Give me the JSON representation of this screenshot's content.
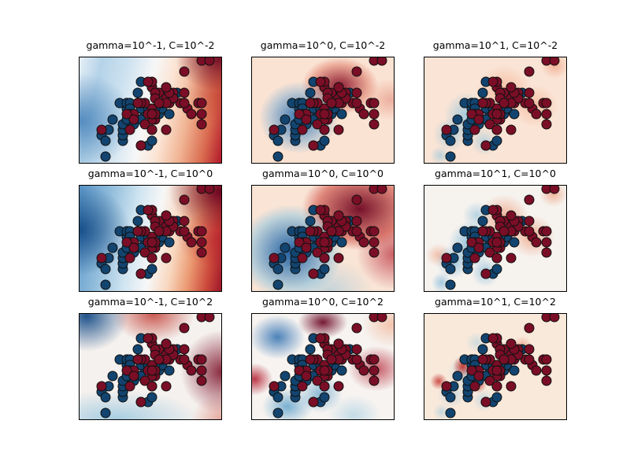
{
  "figure": {
    "background": "#ffffff",
    "grid": {
      "rows": 3,
      "cols": 3
    }
  },
  "chart_data": {
    "type": "scatter",
    "description": "3x3 grid of SVM (RBF kernel) decision surfaces over the same two-class standardized scatter data; columns vary gamma, rows vary C",
    "subplots": [
      {
        "title": "gamma=10^-1, C=10^-2",
        "gamma": "10^-1",
        "C": "10^-2"
      },
      {
        "title": "gamma=10^0, C=10^-2",
        "gamma": "10^0",
        "C": "10^-2"
      },
      {
        "title": "gamma=10^1, C=10^-2",
        "gamma": "10^1",
        "C": "10^-2"
      },
      {
        "title": "gamma=10^-1, C=10^0",
        "gamma": "10^-1",
        "C": "10^0"
      },
      {
        "title": "gamma=10^0, C=10^0",
        "gamma": "10^0",
        "C": "10^0"
      },
      {
        "title": "gamma=10^1, C=10^0",
        "gamma": "10^1",
        "C": "10^0"
      },
      {
        "title": "gamma=10^-1, C=10^2",
        "gamma": "10^-1",
        "C": "10^2"
      },
      {
        "title": "gamma=10^0, C=10^2",
        "gamma": "10^0",
        "C": "10^2"
      },
      {
        "title": "gamma=10^1, C=10^2",
        "gamma": "10^1",
        "C": "10^2"
      }
    ],
    "axes": {
      "x_range": [
        -3,
        3
      ],
      "y_range": [
        -3,
        3
      ],
      "ticks": "none",
      "note": "points are standardized (z-scored) before plotting"
    },
    "classes": [
      {
        "name": "class-0-blue",
        "color": "#12446f"
      },
      {
        "name": "class-1-red",
        "color": "#7a0e26"
      }
    ],
    "point_edge_color": "#101010",
    "colormap": {
      "name": "RdBu",
      "blue_end": "#053061",
      "mid": "#f7f7f7",
      "red_end": "#67001f"
    },
    "points": [
      [
        7.0,
        3.2,
        0
      ],
      [
        6.4,
        3.2,
        0
      ],
      [
        6.9,
        3.1,
        0
      ],
      [
        5.5,
        2.3,
        0
      ],
      [
        6.5,
        2.8,
        0
      ],
      [
        5.7,
        2.8,
        0
      ],
      [
        6.3,
        3.3,
        0
      ],
      [
        4.9,
        2.4,
        0
      ],
      [
        6.6,
        2.9,
        0
      ],
      [
        5.2,
        2.7,
        0
      ],
      [
        5.0,
        2.0,
        0
      ],
      [
        5.9,
        3.0,
        0
      ],
      [
        6.0,
        2.2,
        0
      ],
      [
        6.1,
        2.9,
        0
      ],
      [
        5.6,
        2.9,
        0
      ],
      [
        6.7,
        3.1,
        0
      ],
      [
        5.6,
        3.0,
        0
      ],
      [
        5.8,
        2.7,
        0
      ],
      [
        6.2,
        2.2,
        0
      ],
      [
        5.6,
        2.5,
        0
      ],
      [
        5.9,
        3.2,
        0
      ],
      [
        6.1,
        2.8,
        0
      ],
      [
        6.3,
        2.5,
        0
      ],
      [
        6.1,
        2.8,
        0
      ],
      [
        6.4,
        2.9,
        0
      ],
      [
        6.6,
        3.0,
        0
      ],
      [
        6.8,
        2.8,
        0
      ],
      [
        6.7,
        3.0,
        0
      ],
      [
        6.0,
        2.9,
        0
      ],
      [
        5.7,
        2.6,
        0
      ],
      [
        5.5,
        2.4,
        0
      ],
      [
        5.5,
        2.4,
        0
      ],
      [
        5.8,
        2.7,
        0
      ],
      [
        6.0,
        2.7,
        0
      ],
      [
        5.4,
        3.0,
        0
      ],
      [
        6.0,
        3.4,
        0
      ],
      [
        6.7,
        3.1,
        0
      ],
      [
        6.3,
        2.3,
        0
      ],
      [
        5.6,
        3.0,
        0
      ],
      [
        5.5,
        2.5,
        0
      ],
      [
        5.5,
        2.6,
        0
      ],
      [
        6.1,
        3.0,
        0
      ],
      [
        5.8,
        2.6,
        0
      ],
      [
        5.0,
        2.3,
        0
      ],
      [
        5.6,
        2.7,
        0
      ],
      [
        5.7,
        3.0,
        0
      ],
      [
        5.7,
        2.9,
        0
      ],
      [
        6.2,
        2.9,
        0
      ],
      [
        5.1,
        2.5,
        0
      ],
      [
        5.7,
        2.8,
        0
      ],
      [
        6.3,
        3.3,
        1
      ],
      [
        5.8,
        2.7,
        1
      ],
      [
        7.1,
        3.0,
        1
      ],
      [
        6.3,
        2.9,
        1
      ],
      [
        6.5,
        3.0,
        1
      ],
      [
        7.6,
        3.0,
        1
      ],
      [
        4.9,
        2.5,
        1
      ],
      [
        7.3,
        2.9,
        1
      ],
      [
        6.7,
        2.5,
        1
      ],
      [
        7.2,
        3.6,
        1
      ],
      [
        6.5,
        3.2,
        1
      ],
      [
        6.4,
        2.7,
        1
      ],
      [
        6.8,
        3.0,
        1
      ],
      [
        5.7,
        2.5,
        1
      ],
      [
        5.8,
        2.8,
        1
      ],
      [
        6.4,
        3.2,
        1
      ],
      [
        6.5,
        3.0,
        1
      ],
      [
        7.7,
        3.8,
        1
      ],
      [
        7.7,
        2.6,
        1
      ],
      [
        6.0,
        2.2,
        1
      ],
      [
        6.9,
        3.2,
        1
      ],
      [
        5.6,
        2.8,
        1
      ],
      [
        7.7,
        2.8,
        1
      ],
      [
        6.3,
        2.7,
        1
      ],
      [
        6.7,
        3.3,
        1
      ],
      [
        7.2,
        3.2,
        1
      ],
      [
        6.2,
        2.8,
        1
      ],
      [
        6.1,
        3.0,
        1
      ],
      [
        6.4,
        2.8,
        1
      ],
      [
        7.2,
        3.0,
        1
      ],
      [
        7.4,
        2.8,
        1
      ],
      [
        7.9,
        3.8,
        1
      ],
      [
        6.4,
        2.8,
        1
      ],
      [
        6.3,
        2.8,
        1
      ],
      [
        6.1,
        2.6,
        1
      ],
      [
        7.7,
        3.0,
        1
      ],
      [
        6.3,
        3.4,
        1
      ],
      [
        6.4,
        3.1,
        1
      ],
      [
        6.0,
        3.0,
        1
      ],
      [
        6.9,
        3.1,
        1
      ],
      [
        6.7,
        3.1,
        1
      ],
      [
        6.9,
        3.1,
        1
      ],
      [
        5.8,
        2.7,
        1
      ],
      [
        6.8,
        3.2,
        1
      ],
      [
        6.7,
        3.3,
        1
      ],
      [
        6.7,
        3.0,
        1
      ],
      [
        6.3,
        2.5,
        1
      ],
      [
        6.5,
        3.0,
        1
      ],
      [
        6.2,
        3.4,
        1
      ],
      [
        5.9,
        3.0,
        1
      ]
    ]
  }
}
